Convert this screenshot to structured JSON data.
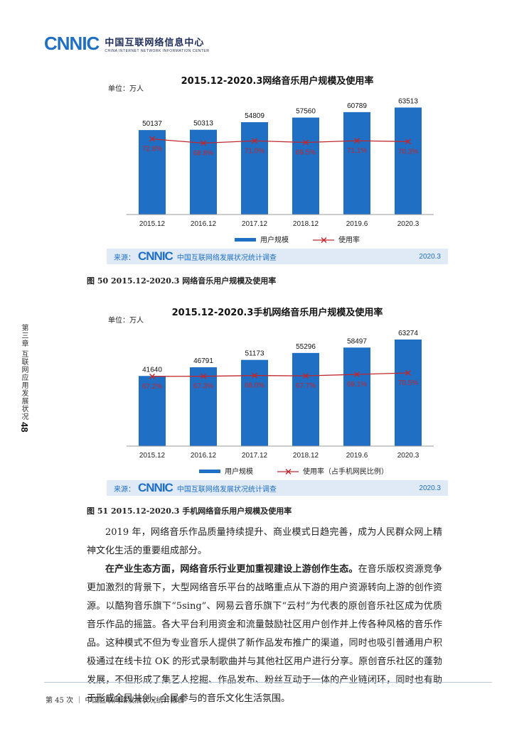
{
  "header": {
    "logo_mark": "CNNIC",
    "logo_cn": "中国互联网络信息中心",
    "logo_en": "CHINA INTERNET NETWORK INFORMATION CENTER"
  },
  "sidebar": {
    "chapter": "第三章 互联网应用发展状况",
    "page_number": "48"
  },
  "colors": {
    "bar": "#1f6fc5",
    "line": "#c0272d",
    "source_bg": "#dfeaf6"
  },
  "chart_data": [
    {
      "type": "bar",
      "title": "2015.12-2020.3网络音乐用户规模及使用率",
      "unit": "单位：万人",
      "categories": [
        "2015.12",
        "2016.12",
        "2017.12",
        "2018.12",
        "2019.6",
        "2020.3"
      ],
      "series": [
        {
          "name": "用户规模",
          "type": "bar",
          "values": [
            50137,
            50313,
            54809,
            57560,
            60789,
            63513
          ]
        },
        {
          "name": "使用率",
          "type": "line",
          "values": [
            72.8,
            68.8,
            71.0,
            69.5,
            71.1,
            70.3
          ],
          "labels": [
            "72.8%",
            "68.8%",
            "71.0%",
            "69.5%",
            "71.1%",
            "70.3%"
          ]
        }
      ],
      "ylim": [
        0,
        70000
      ],
      "legend": "bottom",
      "source": {
        "label": "来源：",
        "logo": "CNNIC",
        "survey": "中国互联网络发展状况统计调查",
        "date": "2020.3"
      }
    },
    {
      "type": "bar",
      "title": "2015.12-2020.3手机网络音乐用户规模及使用率",
      "unit": "单位：万人",
      "categories": [
        "2015.12",
        "2016.12",
        "2017.12",
        "2018.12",
        "2019.6",
        "2020.3"
      ],
      "series": [
        {
          "name": "用户规模",
          "type": "bar",
          "values": [
            41640,
            46791,
            51173,
            55296,
            58497,
            63274
          ]
        },
        {
          "name": "使用率（占手机网民比例）",
          "type": "line",
          "values": [
            67.2,
            67.3,
            68.0,
            67.7,
            69.1,
            70.5
          ],
          "labels": [
            "67.2%",
            "67.3%",
            "68.0%",
            "67.7%",
            "69.1%",
            "70.5%"
          ]
        }
      ],
      "ylim": [
        0,
        70000
      ],
      "legend": "bottom",
      "source": {
        "label": "来源：",
        "logo": "CNNIC",
        "survey": "中国互联网络发展状况统计调查",
        "date": "2020.3"
      }
    }
  ],
  "captions": {
    "fig50": "图 50   2015.12-2020.3 网络音乐用户规模及使用率",
    "fig51": "图 51   2015.12-2020.3 手机网络音乐用户规模及使用率"
  },
  "body": {
    "p1": "2019 年，网络音乐作品质量持续提升、商业模式日趋完善，成为人民群众网上精神文化生活的重要组成部分。",
    "p2_bold": "在产业生态方面，网络音乐行业更加重视建设上游创作生态。",
    "p2_rest": "在音乐版权资源竞争更加激烈的背景下，大型网络音乐平台的战略重点从下游的用户资源转向上游的创作资源。以酷狗音乐旗下“5sing”、网易云音乐旗下“云村”为代表的原创音乐社区成为优质音乐作品的摇篮。各大平台利用资金和流量鼓励社区用户创作并上传各种风格的音乐作品。这种模式不但为专业音乐人提供了新作品发布推广的渠道，同时也吸引普通用户积极通过在线卡拉 OK 的形式录制歌曲并与其他社区用户进行分享。原创音乐社区的蓬勃发展，不但形成了集艺人挖掘、作品发布、粉丝互动于一体的产业链闭环，同时也有助于形成全民共创、全民参与的音乐文化生活氛围。"
  },
  "footer": {
    "text": "第 45 次 ｜ 中国互联网络发展状况统计报告"
  }
}
